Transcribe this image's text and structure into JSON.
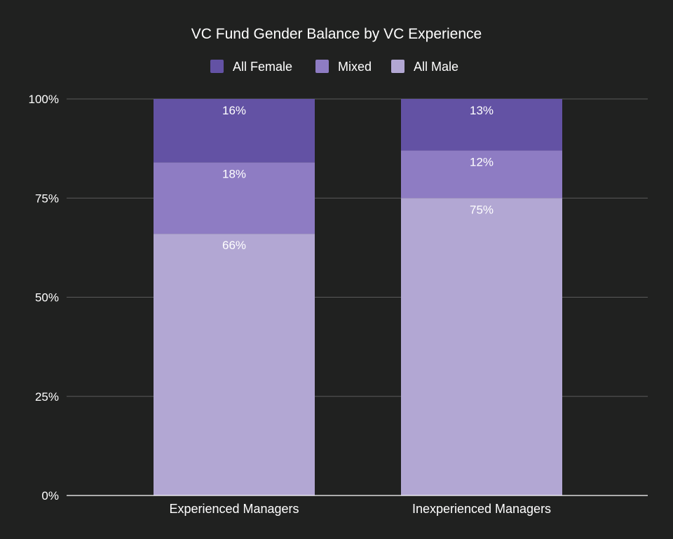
{
  "chart_data": {
    "type": "bar",
    "stacked": true,
    "percent_stacked": true,
    "title": "VC Fund Gender Balance by VC Experience",
    "categories": [
      "Experienced Managers",
      "Inexperienced Managers"
    ],
    "series": [
      {
        "name": "All Male",
        "values": [
          66,
          75
        ],
        "labels": [
          "66%",
          "75%"
        ],
        "color": "#b2a7d3"
      },
      {
        "name": "Mixed",
        "values": [
          18,
          12
        ],
        "labels": [
          "18%",
          "12%"
        ],
        "color": "#8e7cc3"
      },
      {
        "name": "All Female",
        "values": [
          16,
          13
        ],
        "labels": [
          "16%",
          "13%"
        ],
        "color": "#6352a4"
      }
    ],
    "legend_order": [
      "All Female",
      "Mixed",
      "All Male"
    ],
    "legend_position": "top-center",
    "ylim": [
      0,
      100
    ],
    "yticks": [
      0,
      25,
      50,
      75,
      100
    ],
    "ytick_labels": [
      "0%",
      "25%",
      "50%",
      "75%",
      "100%"
    ],
    "xlabel": "",
    "ylabel": "",
    "grid": true
  },
  "colors": {
    "background": "#202120",
    "text": "#ffffff",
    "grid": "#5a5a5a"
  }
}
